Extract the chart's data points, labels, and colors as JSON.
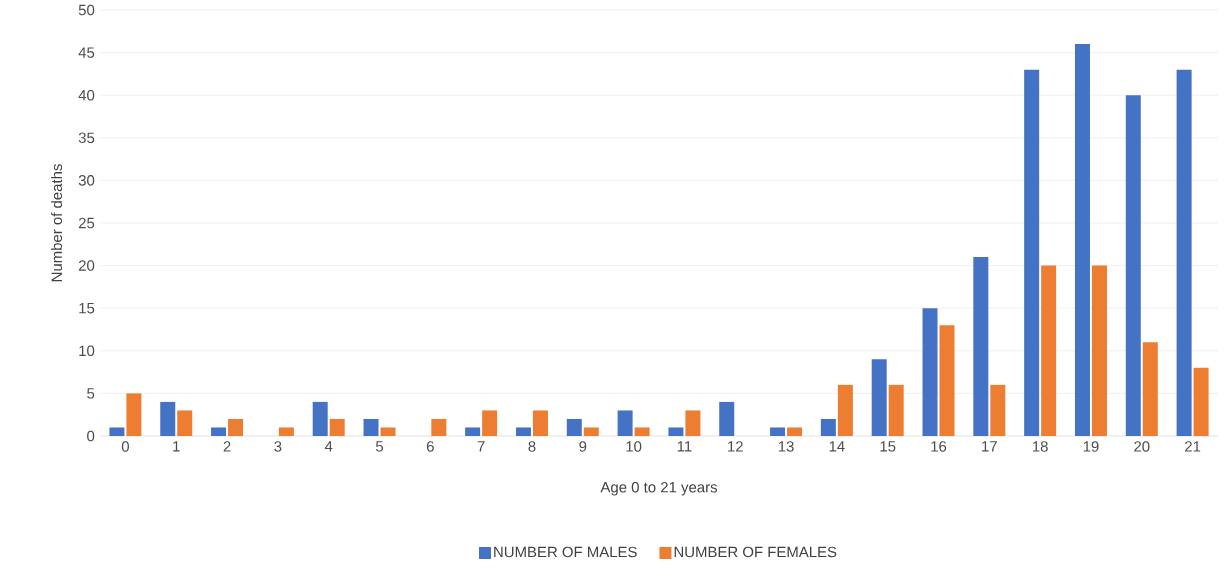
{
  "chart_data": {
    "type": "bar",
    "xlabel": "Age 0 to 21 years",
    "ylabel": "Number of deaths",
    "categories": [
      "0",
      "1",
      "2",
      "3",
      "4",
      "5",
      "6",
      "7",
      "8",
      "9",
      "10",
      "11",
      "12",
      "13",
      "14",
      "15",
      "16",
      "17",
      "18",
      "19",
      "20",
      "21"
    ],
    "series": [
      {
        "name": "NUMBER OF MALES",
        "color": "#4472c4",
        "values": [
          1,
          4,
          1,
          0,
          4,
          2,
          0,
          1,
          1,
          2,
          3,
          1,
          4,
          1,
          2,
          9,
          15,
          21,
          43,
          46,
          40,
          43
        ]
      },
      {
        "name": "NUMBER OF FEMALES",
        "color": "#ed7d31",
        "values": [
          5,
          3,
          2,
          1,
          2,
          1,
          2,
          3,
          3,
          1,
          1,
          3,
          0,
          1,
          6,
          6,
          13,
          6,
          20,
          20,
          11,
          8
        ]
      }
    ],
    "ylim": [
      0,
      50
    ],
    "yticks": [
      0,
      5,
      10,
      15,
      20,
      25,
      30,
      35,
      40,
      45,
      50
    ],
    "grid": "y",
    "legend": "bottom"
  }
}
